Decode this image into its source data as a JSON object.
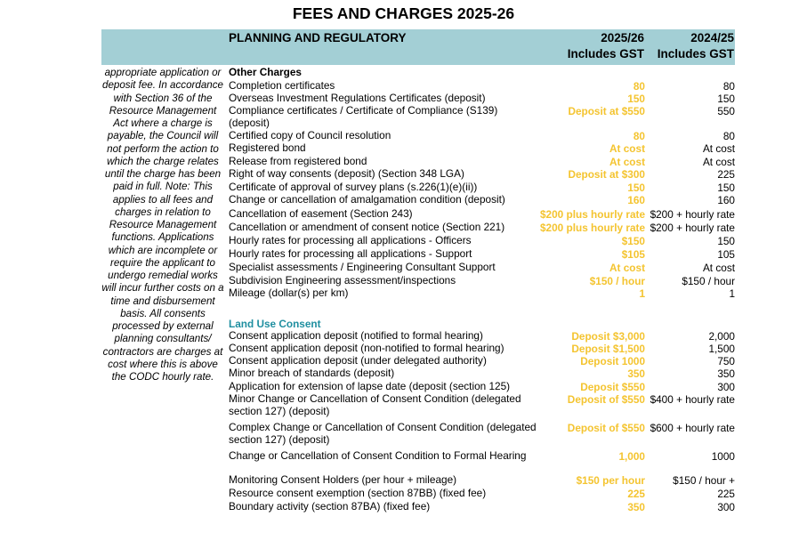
{
  "title": "FEES AND CHARGES 2025-26",
  "header": {
    "section": "PLANNING AND REGULATORY",
    "col1_line1": "2025/26",
    "col1_line2": "Includes GST",
    "col2_line1": "2024/25",
    "col2_line2": "Includes GST"
  },
  "side_note": "appropriate application or deposit fee. In accordance with Section 36 of the Resource Management Act where a charge is payable, the Council will not perform the action to which the charge relates until the charge has been paid in full. Note: This applies to all fees and charges in relation to Resource Management functions. Applications which are incomplete or require the applicant to undergo remedial works will incur further costs on a time and disbursement basis. All consents processed by external planning consultants/ contractors are charges at cost where this is above the CODC hourly rate.",
  "other_charges": {
    "heading": "Other Charges",
    "rows": [
      {
        "desc": "Completion certificates",
        "fee_2526": "80",
        "fee_2425": "80"
      },
      {
        "desc": "Overseas Investment Regulations Certificates (deposit)",
        "fee_2526": "150",
        "fee_2425": "150"
      },
      {
        "desc": "Compliance certificates / Certificate of Compliance (S139) (deposit)",
        "fee_2526": "Deposit at $550",
        "fee_2425": "550"
      },
      {
        "desc": "Certified copy of Council resolution",
        "fee_2526": "80",
        "fee_2425": "80"
      },
      {
        "desc": "Registered bond",
        "fee_2526": "At cost",
        "fee_2425": "At cost"
      },
      {
        "desc": "Release from registered bond",
        "fee_2526": "At cost",
        "fee_2425": "At cost"
      },
      {
        "desc": "Right of way consents (deposit) (Section 348 LGA)",
        "fee_2526": "Deposit at $300",
        "fee_2425": "225"
      },
      {
        "desc": "Certificate of approval of survey plans (s.226(1)(e)(ii))",
        "fee_2526": "150",
        "fee_2425": "150"
      },
      {
        "desc": "Change or cancellation of amalgamation condition (deposit)",
        "fee_2526": "160",
        "fee_2425": "160"
      },
      {
        "desc": "Cancellation of easement (Section 243)",
        "fee_2526": "$200 plus hourly rate",
        "fee_2425": "$200 + hourly rate"
      },
      {
        "desc": "Cancellation or amendment of consent notice (Section 221)",
        "fee_2526": "$200 plus hourly rate",
        "fee_2425": "$200 + hourly rate"
      },
      {
        "desc": "Hourly rates for processing all applications - Officers",
        "fee_2526": "$150",
        "fee_2425": "150"
      },
      {
        "desc": "Hourly rates for processing all applications - Support",
        "fee_2526": "$105",
        "fee_2425": "105"
      },
      {
        "desc": "Specialist assessments / Engineering Consultant Support",
        "fee_2526": "At cost",
        "fee_2425": "At cost"
      },
      {
        "desc": "Subdivision Engineering assessment/inspections",
        "fee_2526": "$150 / hour",
        "fee_2425": "$150 / hour"
      },
      {
        "desc": "Mileage (dollar(s) per km)",
        "fee_2526": "1",
        "fee_2425": "1"
      }
    ]
  },
  "land_use": {
    "heading": "Land Use Consent",
    "rows": [
      {
        "desc": "Consent application deposit (notified to formal hearing)",
        "fee_2526": "Deposit $3,000",
        "fee_2425": "2,000"
      },
      {
        "desc": "Consent application deposit (non-notified to formal hearing)",
        "fee_2526": "Deposit $1,500",
        "fee_2425": "1,500"
      },
      {
        "desc": "Consent application deposit (under delegated authority)",
        "fee_2526": "Deposit 1000",
        "fee_2425": "750"
      },
      {
        "desc": "Minor breach of standards (deposit)",
        "fee_2526": "350",
        "fee_2425": "350"
      },
      {
        "desc": "Application for extension of lapse date (deposit (section 125)",
        "fee_2526": "Deposit $550",
        "fee_2425": "300"
      },
      {
        "desc": "Minor Change or Cancellation of Consent Condition (delegated section 127) (deposit)",
        "fee_2526": "Deposit of $550",
        "fee_2425": "$400 + hourly rate"
      },
      {
        "desc": "Complex Change or Cancellation of Consent Condition (delegated section 127) (deposit)",
        "fee_2526": "Deposit of $550",
        "fee_2425": "$600 + hourly rate"
      },
      {
        "desc": "Change or Cancellation of Consent Condition to Formal Hearing",
        "fee_2526": "1,000",
        "fee_2425": "1000"
      },
      {
        "desc": "Monitoring Consent Holders (per hour + mileage)",
        "fee_2526": "$150 per hour",
        "fee_2425": "$150 / hour +"
      },
      {
        "desc": "Resource consent exemption (section 87BB) (fixed fee)",
        "fee_2526": "225",
        "fee_2425": "225"
      },
      {
        "desc": "Boundary activity (section 87BA) (fixed fee)",
        "fee_2526": "350",
        "fee_2425": "300"
      }
    ]
  },
  "colors": {
    "band": "#a3cfd5",
    "fee_highlight": "#f4c430",
    "section_teal": "#1f8fa0"
  }
}
